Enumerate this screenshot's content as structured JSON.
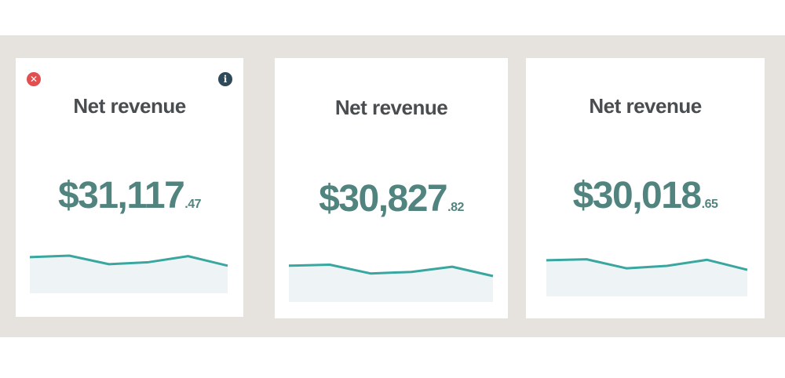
{
  "colors": {
    "band": "#e6e2dd",
    "card": "#ffffff",
    "title": "#4a4d50",
    "amount": "#52847f",
    "line": "#3aa6a0",
    "area": "#eef4f5",
    "close": "#e14f4f",
    "info": "#2e4a5a"
  },
  "icons": {
    "close": "close-icon",
    "info": "info-icon"
  },
  "cards": [
    {
      "title": "Net revenue",
      "amount": "$31,117",
      "cents": ".47",
      "trend": [
        0.72,
        0.75,
        0.58,
        0.62,
        0.74,
        0.55
      ]
    },
    {
      "title": "Net revenue",
      "amount": "$30,827",
      "cents": ".82",
      "trend": [
        0.7,
        0.72,
        0.55,
        0.58,
        0.68,
        0.5
      ]
    },
    {
      "title": "Net revenue",
      "amount": "$30,018",
      "cents": ".65",
      "trend": [
        0.72,
        0.74,
        0.56,
        0.61,
        0.73,
        0.53
      ]
    }
  ]
}
